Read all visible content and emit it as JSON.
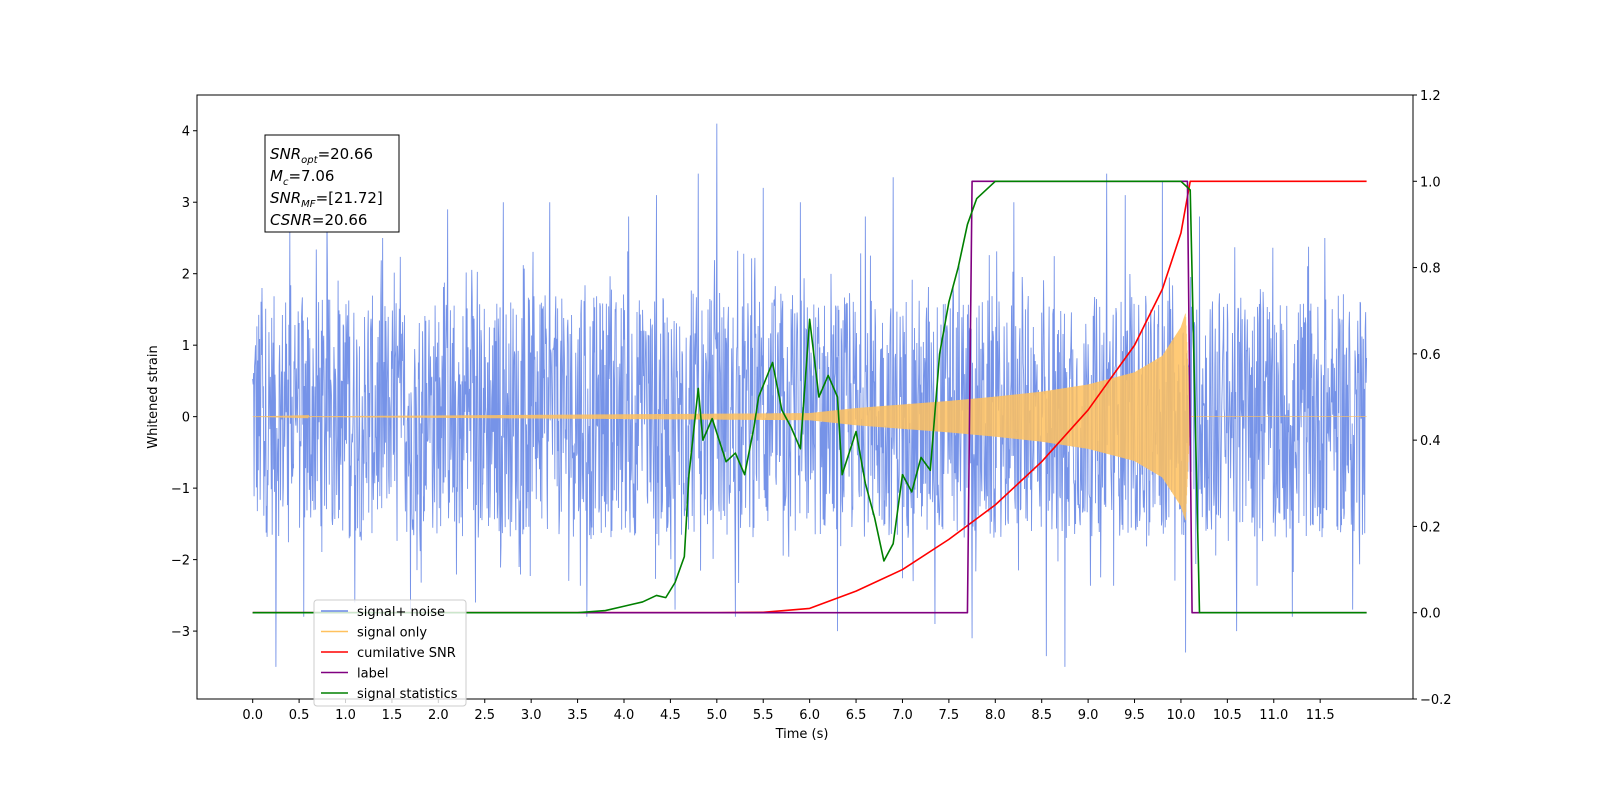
{
  "chart_data": {
    "type": "line",
    "xlabel": "Time (s)",
    "ylabel": "Whitened strain",
    "xlim": [
      -0.6,
      12.5
    ],
    "ylim_left": [
      -3.95,
      4.5
    ],
    "ylim_right": [
      -0.2,
      1.2
    ],
    "x_ticks": [
      "0.0",
      "0.5",
      "1.0",
      "1.5",
      "2.0",
      "2.5",
      "3.0",
      "3.5",
      "4.0",
      "4.5",
      "5.0",
      "5.5",
      "6.0",
      "6.5",
      "7.0",
      "7.5",
      "8.0",
      "8.5",
      "9.0",
      "9.5",
      "10.0",
      "10.5",
      "11.0",
      "11.5"
    ],
    "y_ticks_left": [
      "4",
      "3",
      "2",
      "1",
      "0",
      "−1",
      "−2",
      "−3"
    ],
    "y_ticks_right": [
      "1.2",
      "1.0",
      "0.8",
      "0.6",
      "0.4",
      "0.2",
      "0.0",
      "−0.2"
    ],
    "annotation": [
      {
        "base": "SNR",
        "sub": "opt",
        "value": "=20.66"
      },
      {
        "base": "M",
        "sub": "c",
        "value": "=7.06"
      },
      {
        "base": "SNR",
        "sub": "MF",
        "value": "=[21.72]"
      },
      {
        "base": "CSNR",
        "sub": "",
        "value": "=20.66"
      }
    ],
    "legend": {
      "position": "lower-left",
      "entries": [
        {
          "label": "signal+ noise",
          "color": "#6a8ae6"
        },
        {
          "label": "signal only",
          "color": "#ffc15e"
        },
        {
          "label": "cumilative SNR",
          "color": "#ff0000"
        },
        {
          "label": "label",
          "color": "#800080"
        },
        {
          "label": "signal statistics",
          "color": "#008000"
        }
      ]
    },
    "series": [
      {
        "name": "signal+ noise",
        "axis": "left",
        "color": "#6a8ae6",
        "note": "dense noise-dominated strain, approx. range -3.5 to 4.1",
        "x_range": [
          0.0,
          12.0
        ],
        "band_envelope_upper": [
          [
            0.0,
            1.7
          ],
          [
            12.0,
            1.7
          ]
        ],
        "band_envelope_lower": [
          [
            0.0,
            -1.7
          ],
          [
            12.0,
            -1.7
          ]
        ],
        "spikes": [
          [
            0.1,
            1.8
          ],
          [
            0.25,
            -3.5
          ],
          [
            0.4,
            2.6
          ],
          [
            0.55,
            -2.8
          ],
          [
            0.8,
            2.9
          ],
          [
            1.1,
            -2.6
          ],
          [
            1.4,
            2.5
          ],
          [
            1.7,
            -2.7
          ],
          [
            2.1,
            2.9
          ],
          [
            2.4,
            -2.6
          ],
          [
            2.7,
            3.0
          ],
          [
            3.2,
            3.0
          ],
          [
            3.6,
            -2.8
          ],
          [
            4.05,
            2.8
          ],
          [
            4.35,
            3.1
          ],
          [
            4.55,
            -2.7
          ],
          [
            4.8,
            3.4
          ],
          [
            5.0,
            4.1
          ],
          [
            5.2,
            -2.8
          ],
          [
            5.5,
            3.2
          ],
          [
            5.9,
            3.0
          ],
          [
            6.3,
            -3.0
          ],
          [
            6.6,
            2.8
          ],
          [
            6.9,
            3.35
          ],
          [
            7.35,
            -2.9
          ],
          [
            7.75,
            -3.1
          ],
          [
            8.2,
            3.0
          ],
          [
            8.55,
            -3.35
          ],
          [
            8.75,
            -3.5
          ],
          [
            9.2,
            3.4
          ],
          [
            9.4,
            3.1
          ],
          [
            9.8,
            3.3
          ],
          [
            10.05,
            -3.3
          ],
          [
            10.2,
            2.8
          ],
          [
            10.6,
            -3.0
          ],
          [
            11.2,
            -2.8
          ],
          [
            11.55,
            2.5
          ],
          [
            11.85,
            -2.7
          ]
        ]
      },
      {
        "name": "signal only",
        "axis": "left",
        "color": "#ffc15e",
        "note": "chirp oscillation, amplitude envelope grows until merger near t=10.1",
        "envelope": [
          [
            0.0,
            0.0
          ],
          [
            6.0,
            0.05
          ],
          [
            6.5,
            0.12
          ],
          [
            7.0,
            0.17
          ],
          [
            7.5,
            0.22
          ],
          [
            8.0,
            0.28
          ],
          [
            8.5,
            0.35
          ],
          [
            9.0,
            0.45
          ],
          [
            9.5,
            0.62
          ],
          [
            9.8,
            0.85
          ],
          [
            10.0,
            1.25
          ],
          [
            10.05,
            1.45
          ],
          [
            10.1,
            0.0
          ],
          [
            12.0,
            0.0
          ]
        ]
      },
      {
        "name": "cumilative SNR",
        "axis": "right",
        "color": "#ff0000",
        "points": [
          [
            0.0,
            0.0
          ],
          [
            5.0,
            0.0
          ],
          [
            5.5,
            0.001
          ],
          [
            6.0,
            0.01
          ],
          [
            6.5,
            0.05
          ],
          [
            7.0,
            0.1
          ],
          [
            7.5,
            0.17
          ],
          [
            8.0,
            0.25
          ],
          [
            8.5,
            0.35
          ],
          [
            9.0,
            0.47
          ],
          [
            9.5,
            0.62
          ],
          [
            9.8,
            0.75
          ],
          [
            10.0,
            0.88
          ],
          [
            10.1,
            1.0
          ],
          [
            12.0,
            1.0
          ]
        ]
      },
      {
        "name": "label",
        "axis": "right",
        "color": "#800080",
        "points": [
          [
            0.0,
            0.0
          ],
          [
            7.7,
            0.0
          ],
          [
            7.75,
            1.0
          ],
          [
            10.07,
            1.0
          ],
          [
            10.12,
            0.0
          ],
          [
            12.0,
            0.0
          ]
        ]
      },
      {
        "name": "signal statistics",
        "axis": "right",
        "color": "#008000",
        "points": [
          [
            0.0,
            0.0
          ],
          [
            3.0,
            0.0
          ],
          [
            3.5,
            0.0
          ],
          [
            3.8,
            0.005
          ],
          [
            4.0,
            0.015
          ],
          [
            4.2,
            0.025
          ],
          [
            4.35,
            0.04
          ],
          [
            4.45,
            0.035
          ],
          [
            4.55,
            0.07
          ],
          [
            4.65,
            0.13
          ],
          [
            4.7,
            0.32
          ],
          [
            4.8,
            0.52
          ],
          [
            4.85,
            0.4
          ],
          [
            4.95,
            0.45
          ],
          [
            5.1,
            0.35
          ],
          [
            5.2,
            0.37
          ],
          [
            5.3,
            0.32
          ],
          [
            5.4,
            0.43
          ],
          [
            5.45,
            0.5
          ],
          [
            5.6,
            0.58
          ],
          [
            5.7,
            0.47
          ],
          [
            5.8,
            0.43
          ],
          [
            5.9,
            0.38
          ],
          [
            6.0,
            0.68
          ],
          [
            6.1,
            0.5
          ],
          [
            6.2,
            0.55
          ],
          [
            6.3,
            0.5
          ],
          [
            6.35,
            0.32
          ],
          [
            6.5,
            0.42
          ],
          [
            6.6,
            0.3
          ],
          [
            6.7,
            0.22
          ],
          [
            6.8,
            0.12
          ],
          [
            6.9,
            0.16
          ],
          [
            7.0,
            0.32
          ],
          [
            7.1,
            0.28
          ],
          [
            7.2,
            0.36
          ],
          [
            7.3,
            0.33
          ],
          [
            7.4,
            0.6
          ],
          [
            7.5,
            0.72
          ],
          [
            7.6,
            0.8
          ],
          [
            7.7,
            0.9
          ],
          [
            7.8,
            0.96
          ],
          [
            8.0,
            1.0
          ],
          [
            10.0,
            1.0
          ],
          [
            10.1,
            0.98
          ],
          [
            10.2,
            0.0
          ],
          [
            12.0,
            0.0
          ]
        ]
      }
    ]
  }
}
